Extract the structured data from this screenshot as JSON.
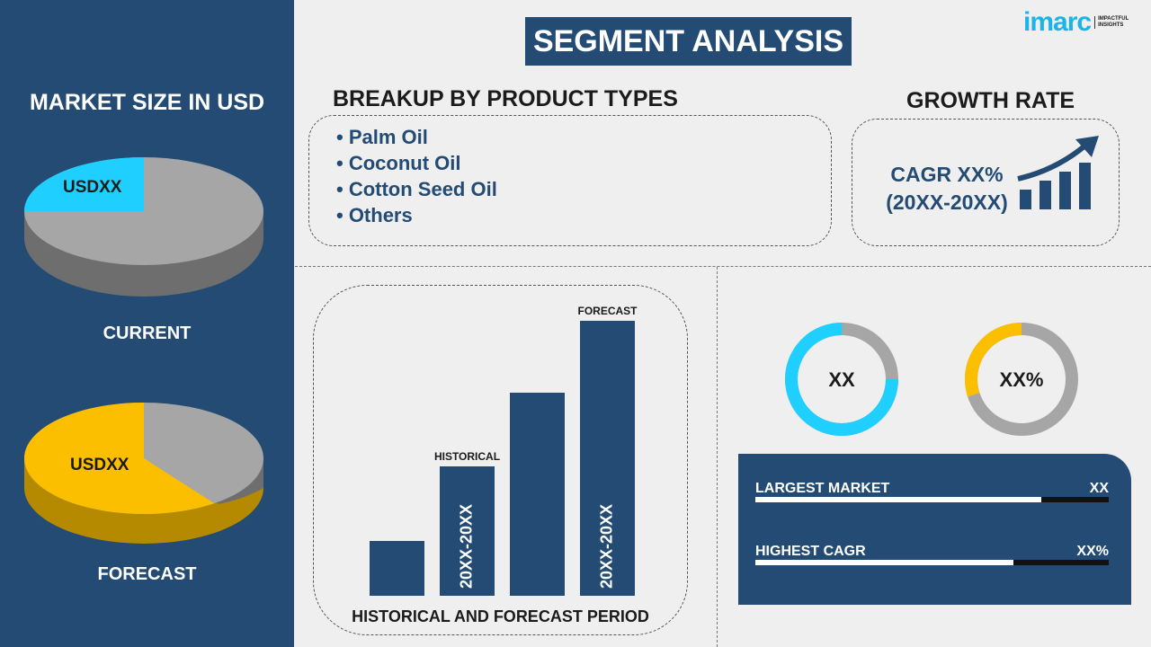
{
  "header": {
    "title": "SEGMENT ANALYSIS",
    "logo_text": "imarc",
    "logo_tagline": "IMPACTFUL INSIGHTS"
  },
  "left": {
    "title": "MARKET SIZE IN USD",
    "current": {
      "label": "CURRENT",
      "value": "USDXX",
      "share_pct": 25,
      "color": "#1fcfff"
    },
    "forecast": {
      "label": "FORECAST",
      "value": "USDXX",
      "share_pct": 60,
      "color": "#fbbf00"
    }
  },
  "breakup": {
    "title": "BREAKUP BY PRODUCT TYPES",
    "items": [
      "Palm Oil",
      "Coconut Oil",
      "Cotton Seed Oil",
      "Others"
    ]
  },
  "growth": {
    "title": "GROWTH RATE",
    "cagr": "CAGR XX%",
    "period": "(20XX-20XX)"
  },
  "bars": {
    "values": [
      20,
      47,
      74,
      100
    ],
    "historical_label": "HISTORICAL",
    "forecast_label": "FORECAST",
    "historical_period": "20XX-20XX",
    "forecast_period": "20XX-20XX",
    "caption": "HISTORICAL AND FORECAST PERIOD",
    "color": "#234b73"
  },
  "donuts": [
    {
      "label": "XX",
      "pct": 75,
      "color": "#1fcfff"
    },
    {
      "label": "XX%",
      "pct": 30,
      "color": "#fbbf00"
    }
  ],
  "stats": [
    {
      "label": "LARGEST MARKET",
      "value": "XX",
      "pct": 81
    },
    {
      "label": "HIGHEST CAGR",
      "value": "XX%",
      "pct": 73
    }
  ]
}
